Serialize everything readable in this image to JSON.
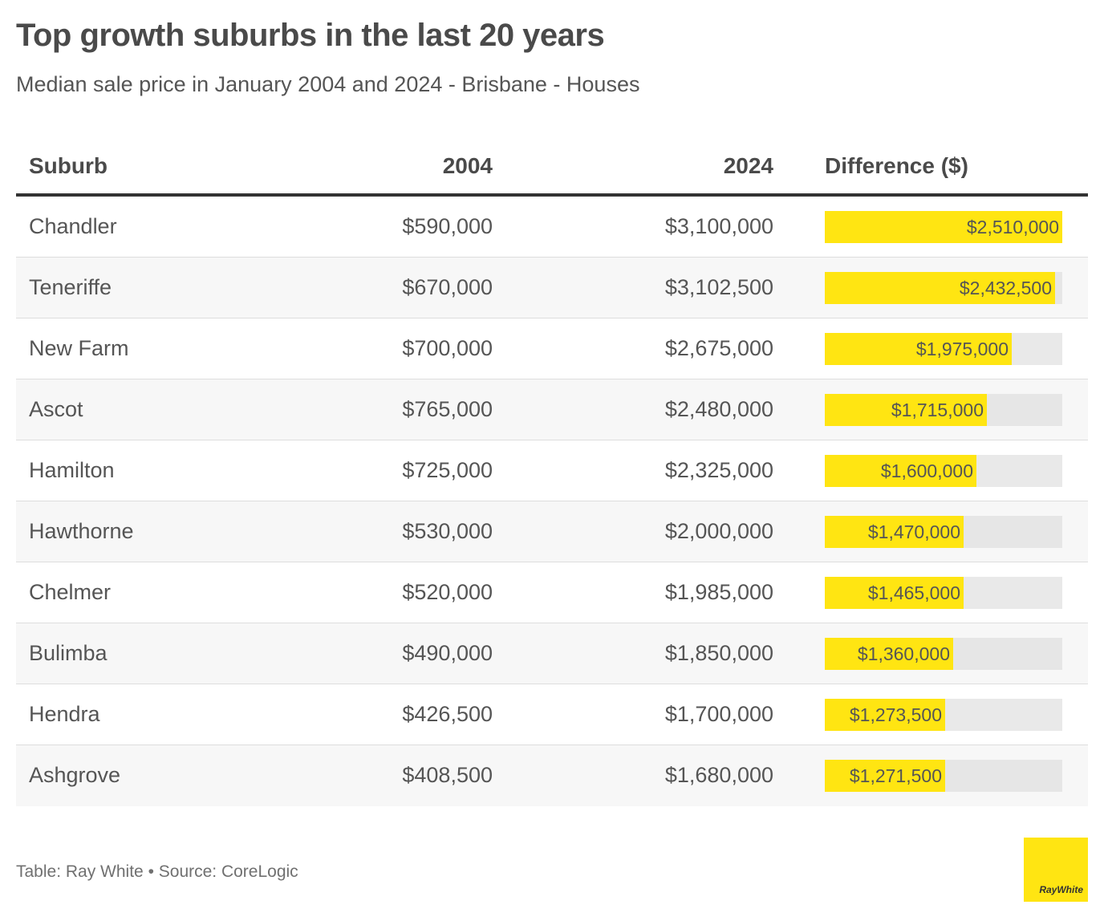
{
  "title": "Top growth suburbs in the last 20 years",
  "subtitle": "Median sale price in January 2004 and 2024 - Brisbane - Houses",
  "headers": {
    "suburb": "Suburb",
    "y2004": "2004",
    "y2024": "2024",
    "difference": "Difference ($)"
  },
  "footer": "Table: Ray White • Source: CoreLogic",
  "logo_text": "RayWhite",
  "colors": {
    "bar": "#ffe512",
    "track": "#e9e9e9",
    "logo": "#ffe512"
  },
  "chart_data": {
    "type": "table",
    "columns": [
      "Suburb",
      "2004",
      "2024",
      "Difference ($)"
    ],
    "difference_max": 2510000,
    "rows": [
      {
        "suburb": "Chandler",
        "y2004": "$590,000",
        "y2024": "$3,100,000",
        "difference_label": "$2,510,000",
        "difference": 2510000
      },
      {
        "suburb": "Teneriffe",
        "y2004": "$670,000",
        "y2024": "$3,102,500",
        "difference_label": "$2,432,500",
        "difference": 2432500
      },
      {
        "suburb": "New Farm",
        "y2004": "$700,000",
        "y2024": "$2,675,000",
        "difference_label": "$1,975,000",
        "difference": 1975000
      },
      {
        "suburb": "Ascot",
        "y2004": "$765,000",
        "y2024": "$2,480,000",
        "difference_label": "$1,715,000",
        "difference": 1715000
      },
      {
        "suburb": "Hamilton",
        "y2004": "$725,000",
        "y2024": "$2,325,000",
        "difference_label": "$1,600,000",
        "difference": 1600000
      },
      {
        "suburb": "Hawthorne",
        "y2004": "$530,000",
        "y2024": "$2,000,000",
        "difference_label": "$1,470,000",
        "difference": 1470000
      },
      {
        "suburb": "Chelmer",
        "y2004": "$520,000",
        "y2024": "$1,985,000",
        "difference_label": "$1,465,000",
        "difference": 1465000
      },
      {
        "suburb": "Bulimba",
        "y2004": "$490,000",
        "y2024": "$1,850,000",
        "difference_label": "$1,360,000",
        "difference": 1360000
      },
      {
        "suburb": "Hendra",
        "y2004": "$426,500",
        "y2024": "$1,700,000",
        "difference_label": "$1,273,500",
        "difference": 1273500
      },
      {
        "suburb": "Ashgrove",
        "y2004": "$408,500",
        "y2024": "$1,680,000",
        "difference_label": "$1,271,500",
        "difference": 1271500
      }
    ]
  }
}
